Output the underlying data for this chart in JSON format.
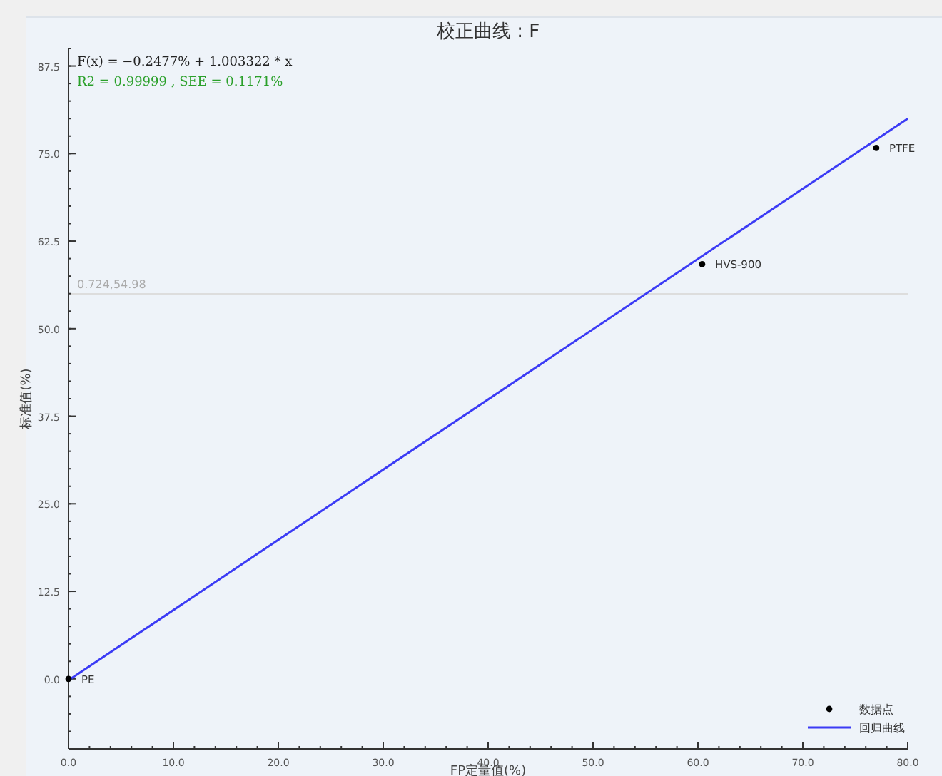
{
  "chart_data": {
    "type": "scatter",
    "title": "校正曲线 : F",
    "xlabel": "FP定量值(%)",
    "ylabel": "标准值(%)",
    "annotations": [
      "F(x) = −0.2477% + 1.003322 * x",
      "R2 = 0.99999 , SEE = 0.1171%",
      {
        "text": "PE",
        "x": 0,
        "y": 0
      },
      {
        "text": "HVS-900",
        "x": 60.4,
        "y": 59.2
      },
      {
        "text": "PTFE",
        "x": 77.0,
        "y": 75.8
      }
    ],
    "series": [
      {
        "name": "数据点",
        "color": "#000000",
        "marker": "circle",
        "x": [
          0,
          60.4,
          77.0
        ],
        "values": [
          0,
          59.2,
          75.8
        ]
      },
      {
        "name": "回归曲线",
        "type": "line",
        "color": "#3b3bf5",
        "line_style": "solid",
        "x": [
          0,
          80
        ],
        "values": [
          -0.2,
          80.0
        ]
      }
    ],
    "ref_lines": [
      {
        "axis": "y",
        "value": 54.98,
        "label": "0.724,54.98",
        "color": "#dddddd"
      }
    ],
    "xlim": [
      0,
      80
    ],
    "ylim": [
      -10,
      90
    ],
    "xticks": [
      {
        "value": 0,
        "label": "0.0"
      },
      {
        "value": 10,
        "label": "10.0"
      },
      {
        "value": 20,
        "label": "20.0"
      },
      {
        "value": 30,
        "label": "30.0"
      },
      {
        "value": 40,
        "label": "40.0"
      },
      {
        "value": 50,
        "label": "50.0"
      },
      {
        "value": 60,
        "label": "60.0"
      },
      {
        "value": 70,
        "label": "70.0"
      },
      {
        "value": 80,
        "label": "80.0"
      }
    ],
    "yticks": [
      {
        "value": 0,
        "label": "0.0"
      },
      {
        "value": 12.5,
        "label": "12.5"
      },
      {
        "value": 25,
        "label": "25.0"
      },
      {
        "value": 37.5,
        "label": "37.5"
      },
      {
        "value": 50,
        "label": "50.0"
      },
      {
        "value": 62.5,
        "label": "62.5"
      },
      {
        "value": 75,
        "label": "75.0"
      },
      {
        "value": 87.5,
        "label": "87.5"
      }
    ],
    "grid": false,
    "legend": "bottom right"
  }
}
